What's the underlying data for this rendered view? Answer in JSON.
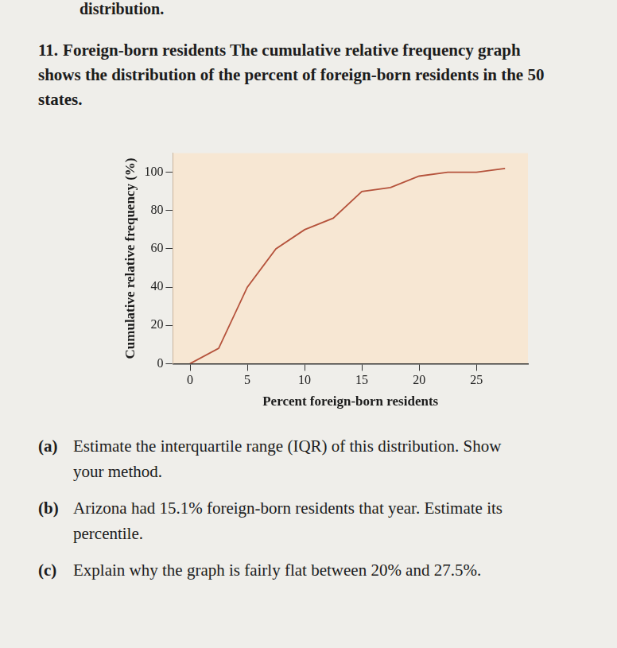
{
  "page": {
    "top_fragment": "distribution.",
    "problem_number": "11.",
    "heading": "Foreign-born residents",
    "intro": "The cumulative relative frequency graph shows the distribution of the percent of foreign-born residents in the 50 states.",
    "questions": [
      {
        "label": "(a)",
        "text": "Estimate the interquartile range (IQR) of this distribution. Show your method."
      },
      {
        "label": "(b)",
        "text": "Arizona had 15.1% foreign-born residents that year. Estimate its percentile."
      },
      {
        "label": "(c)",
        "text": "Explain why the graph is fairly flat between 20% and 27.5%."
      }
    ]
  },
  "chart_data": {
    "type": "line",
    "x_label": "Percent foreign-born residents",
    "y_label": "Cumulative relative frequency (%)",
    "x": [
      0,
      2.5,
      5,
      7.5,
      10,
      12.5,
      15,
      17.5,
      20,
      22.5,
      25,
      27.5
    ],
    "values": [
      0,
      8,
      40,
      60,
      70,
      76,
      90,
      92,
      98,
      100,
      100,
      102
    ],
    "color": "#b5533c",
    "xlim": [
      -1.5,
      29.5
    ],
    "xticks": [
      0,
      5,
      10,
      15,
      20,
      25
    ],
    "ylim": [
      0,
      110
    ],
    "yticks": [
      0,
      20,
      40,
      60,
      80,
      100
    ],
    "grid": false
  }
}
